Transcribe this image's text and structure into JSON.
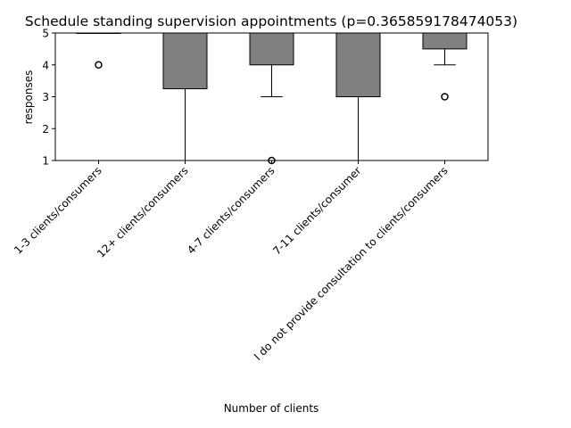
{
  "chart_data": {
    "type": "box",
    "title": "Schedule standing supervision appointments (p=0.365859178474053)",
    "xlabel": "Number of clients",
    "ylabel": "responses",
    "ylim": [
      1,
      5
    ],
    "yticks": [
      1,
      2,
      3,
      4,
      5
    ],
    "grid": false,
    "categories": [
      "1-3 clients/consumers",
      "12+ clients/consumers",
      "4-7 clients/consumers",
      "7-11 clients/consumer",
      "I do not provide consultation to clients/consumers"
    ],
    "boxes": [
      {
        "whisker_low": 5,
        "q1": 5,
        "median": 5,
        "q3": 5,
        "whisker_high": 5,
        "outliers": [
          4
        ]
      },
      {
        "whisker_low": 1,
        "q1": 3.25,
        "median": 5,
        "q3": 5,
        "whisker_high": 5,
        "outliers": []
      },
      {
        "whisker_low": 3,
        "q1": 4,
        "median": 5,
        "q3": 5,
        "whisker_high": 5,
        "outliers": [
          1
        ]
      },
      {
        "whisker_low": 1,
        "q1": 3,
        "median": 5,
        "q3": 5,
        "whisker_high": 5,
        "outliers": []
      },
      {
        "whisker_low": 4,
        "q1": 4.5,
        "median": 5,
        "q3": 5,
        "whisker_high": 5,
        "outliers": [
          3
        ]
      }
    ],
    "colors": {
      "box_fill": "#808080",
      "edge": "#000000",
      "background": "#ffffff"
    }
  }
}
